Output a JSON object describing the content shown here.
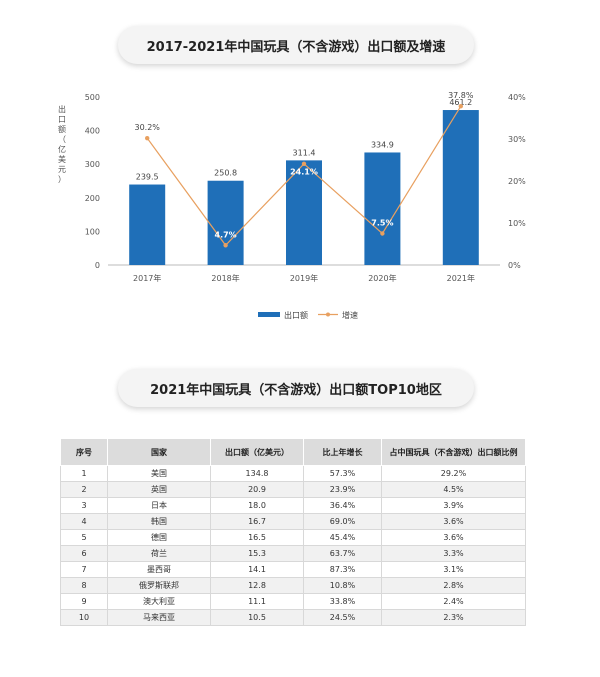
{
  "titles": {
    "chart": "2017-2021年中国玩具（不含游戏）出口额及增速",
    "table": "2021年中国玩具（不含游戏）出口额TOP10地区"
  },
  "chart_data": {
    "type": "bar+line",
    "categories": [
      "2017年",
      "2018年",
      "2019年",
      "2020年",
      "2021年"
    ],
    "series": [
      {
        "name": "出口额",
        "type": "bar",
        "axis": "left",
        "values": [
          239.5,
          250.8,
          311.4,
          334.9,
          461.2
        ],
        "labels": [
          "239.5",
          "250.8",
          "311.4",
          "334.9",
          "461.2"
        ]
      },
      {
        "name": "增速",
        "type": "line",
        "axis": "right",
        "values": [
          30.2,
          4.7,
          24.1,
          7.5,
          37.8
        ],
        "labels": [
          "30.2%",
          "4.7%",
          "24.1%",
          "7.5%",
          "37.8%"
        ]
      }
    ],
    "ylabel": "出口额（亿美元）",
    "ylim": [
      0,
      500
    ],
    "yticks": [
      0,
      100,
      200,
      300,
      400,
      500
    ],
    "y2lim": [
      0,
      40
    ],
    "y2ticks": [
      "0%",
      "10%",
      "20%",
      "30%",
      "40%"
    ],
    "colors": {
      "bar": "#1f6fb8",
      "line": "#e8a060"
    },
    "legend_position": "bottom"
  },
  "table": {
    "headers": [
      "序号",
      "国家",
      "出口额（亿美元）",
      "比上年增长",
      "占中国玩具（不含游戏）出口额比例"
    ],
    "rows": [
      [
        "1",
        "美国",
        "134.8",
        "57.3%",
        "29.2%"
      ],
      [
        "2",
        "英国",
        "20.9",
        "23.9%",
        "4.5%"
      ],
      [
        "3",
        "日本",
        "18.0",
        "36.4%",
        "3.9%"
      ],
      [
        "4",
        "韩国",
        "16.7",
        "69.0%",
        "3.6%"
      ],
      [
        "5",
        "德国",
        "16.5",
        "45.4%",
        "3.6%"
      ],
      [
        "6",
        "荷兰",
        "15.3",
        "63.7%",
        "3.3%"
      ],
      [
        "7",
        "墨西哥",
        "14.1",
        "87.3%",
        "3.1%"
      ],
      [
        "8",
        "俄罗斯联邦",
        "12.8",
        "10.8%",
        "2.8%"
      ],
      [
        "9",
        "澳大利亚",
        "11.1",
        "33.8%",
        "2.4%"
      ],
      [
        "10",
        "马来西亚",
        "10.5",
        "24.5%",
        "2.3%"
      ]
    ]
  }
}
